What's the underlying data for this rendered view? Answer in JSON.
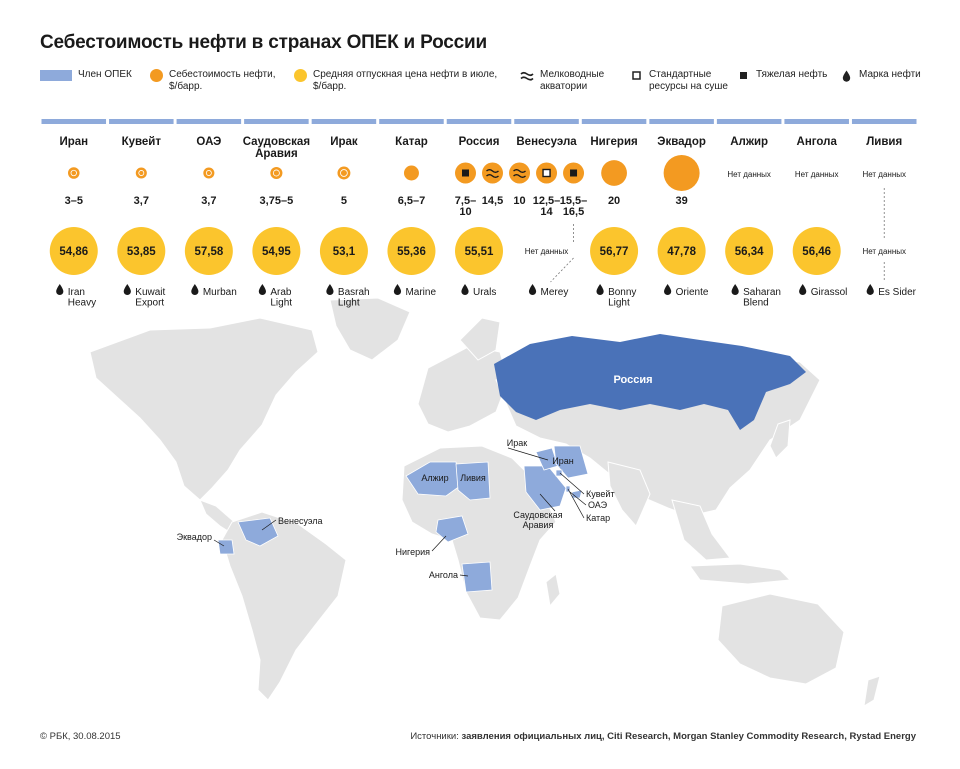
{
  "title": "Себестоимость нефти в странах ОПЕК и России",
  "legend": {
    "opec_member": "Член ОПЕК",
    "cost": "Себестоимость нефти,\n$/барр.",
    "price": "Средняя отпускная цена нефти в июле,\n$/барр.",
    "shallow": "Мелководные\nакватории",
    "standard": "Стандартные\nресурсы на суше",
    "heavy": "Тяжелая нефть",
    "brand": "Марка нефти"
  },
  "colors": {
    "opec": "#8eaadb",
    "russia": "#4a72b8",
    "cost": "#f39a21",
    "price": "#fbc52d",
    "land": "#e3e3e3",
    "bar": "#8eaadb"
  },
  "no_data": "Нет данных",
  "footer": {
    "left": "© РБК, 30.08.2015",
    "sources_label": "Источники:",
    "sources": "заявления официальных лиц, Citi Research, Morgan Stanley Commodity Research, Rystad Energy"
  },
  "chart_data": {
    "type": "table",
    "title": "Себестоимость нефти в странах ОПЕК и России",
    "countries": [
      {
        "name": "Иран",
        "costs": [
          {
            "label": "3–5",
            "value": 4
          }
        ],
        "price": 54.86,
        "price_label": "54,86",
        "brand": "Iran\nHeavy"
      },
      {
        "name": "Кувейт",
        "costs": [
          {
            "label": "3,7",
            "value": 3.7
          }
        ],
        "price": 53.85,
        "price_label": "53,85",
        "brand": "Kuwait\nExport"
      },
      {
        "name": "ОАЭ",
        "costs": [
          {
            "label": "3,7",
            "value": 3.7
          }
        ],
        "price": 57.58,
        "price_label": "57,58",
        "brand": "Murban"
      },
      {
        "name": "Саудовская\nАравия",
        "costs": [
          {
            "label": "3,75–5",
            "value": 4.4
          }
        ],
        "price": 54.95,
        "price_label": "54,95",
        "brand": "Arab\nLight"
      },
      {
        "name": "Ирак",
        "costs": [
          {
            "label": "5",
            "value": 5
          }
        ],
        "price": 53.1,
        "price_label": "53,1",
        "brand": "Basrah\nLight"
      },
      {
        "name": "Катар",
        "costs": [
          {
            "label": "6,5–7",
            "value": 6.75
          }
        ],
        "price": 55.36,
        "price_label": "55,36",
        "brand": "Marine"
      },
      {
        "name": "Россия",
        "costs": [
          {
            "label": "7,5–\n10",
            "value": 8.75,
            "type": "heavy"
          },
          {
            "label": "14,5",
            "value": 14.5,
            "type": "shallow"
          }
        ],
        "price": 55.51,
        "price_label": "55,51",
        "brand": "Urals"
      },
      {
        "name": "Венесуэла",
        "costs": [
          {
            "label": "10",
            "value": 10,
            "type": "shallow"
          },
          {
            "label": "12,5–\n14",
            "value": 13.25,
            "type": "standard"
          },
          {
            "label": "15,5–\n16,5",
            "value": 16,
            "type": "heavy"
          }
        ],
        "price": null,
        "price_label": "Нет данных",
        "brand": "Merey"
      },
      {
        "name": "Нигерия",
        "costs": [
          {
            "label": "20",
            "value": 20
          }
        ],
        "price": 56.77,
        "price_label": "56,77",
        "brand": "Bonny\nLight"
      },
      {
        "name": "Эквадор",
        "costs": [
          {
            "label": "39",
            "value": 39
          }
        ],
        "price": 47.78,
        "price_label": "47,78",
        "brand": "Oriente"
      },
      {
        "name": "Алжир",
        "costs": [],
        "cost_label": "Нет данных",
        "price": 56.34,
        "price_label": "56,34",
        "brand": "Saharan\nBlend"
      },
      {
        "name": "Ангола",
        "costs": [],
        "cost_label": "Нет данных",
        "price": 56.46,
        "price_label": "56,46",
        "brand": "Girassol"
      },
      {
        "name": "Ливия",
        "costs": [],
        "cost_label": "Нет данных",
        "price": null,
        "price_label": "Нет данных",
        "brand": "Es Sider"
      }
    ],
    "map_labels": [
      "Россия",
      "Ирак",
      "Иран",
      "Алжир",
      "Ливия",
      "Кувейт",
      "ОАЭ",
      "Саудовская\nАравия",
      "Катар",
      "Венесуэла",
      "Эквадор",
      "Нигерия",
      "Ангола"
    ]
  }
}
